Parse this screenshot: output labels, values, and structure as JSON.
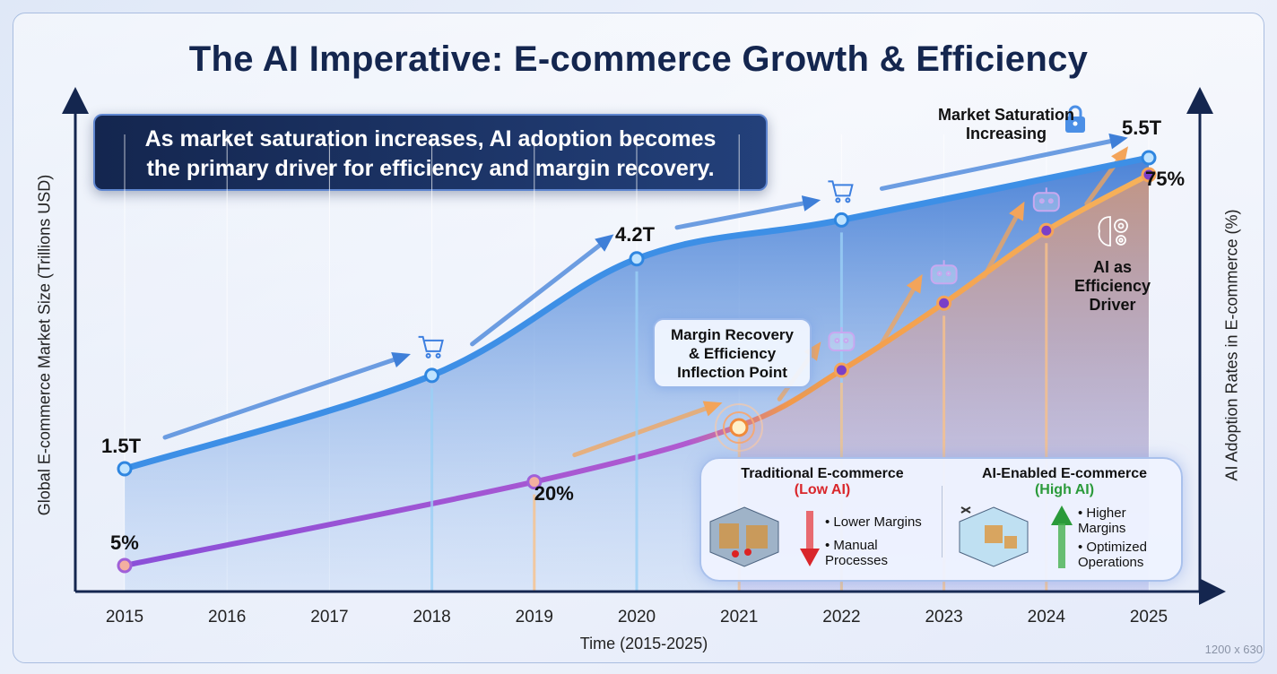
{
  "title": "The AI Imperative: E-commerce Growth & Efficiency",
  "callout": [
    "As market saturation increases, AI adoption becomes",
    "the primary driver for efficiency and margin recovery."
  ],
  "annotations": {
    "saturation": [
      "Market Saturation",
      "Increasing"
    ],
    "inflection": [
      "Margin Recovery",
      "& Efficiency",
      "Inflection Point"
    ],
    "ai_driver": [
      "AI as",
      "Efficiency",
      "Driver"
    ]
  },
  "comparison": {
    "traditional": {
      "title": "Traditional E-commerce",
      "tag": "(Low AI)",
      "bullets": [
        "Lower Margins",
        "Manual Processes"
      ],
      "color": "#d9262b"
    },
    "ai": {
      "title": "AI-Enabled E-commerce",
      "tag": "(High AI)",
      "bullets": [
        "Higher Margins",
        "Optimized Operations"
      ],
      "color": "#2a9a3a"
    }
  },
  "size_label": "1200 x 630",
  "chart_data": {
    "type": "line",
    "xlabel": "Time (2015-2025)",
    "ylabel": "Global E-commerce Market Size (Trillions USD)",
    "y2label": "AI Adoption Rates in E-commerce (%)",
    "x": [
      "2015",
      "2016",
      "2017",
      "2018",
      "2019",
      "2020",
      "2021",
      "2022",
      "2023",
      "2024",
      "2025"
    ],
    "series": [
      {
        "key": "market",
        "axis": "left",
        "color": "#3d8fe6",
        "points": [
          {
            "x": "2015",
            "y": 1.5,
            "label": "1.5T"
          },
          {
            "x": "2018",
            "y": 2.7
          },
          {
            "x": "2020",
            "y": 4.2,
            "label": "4.2T"
          },
          {
            "x": "2022",
            "y": 4.7
          },
          {
            "x": "2025",
            "y": 5.5,
            "label": "5.5T"
          }
        ]
      },
      {
        "key": "adoption",
        "axis": "right",
        "color": "#f5a54a",
        "points": [
          {
            "x": "2015",
            "y": 5,
            "label": "5%"
          },
          {
            "x": "2019",
            "y": 20,
            "label": "20%"
          },
          {
            "x": "2021",
            "y": 30
          },
          {
            "x": "2022",
            "y": 40
          },
          {
            "x": "2023",
            "y": 52
          },
          {
            "x": "2024",
            "y": 65
          },
          {
            "x": "2025",
            "y": 75,
            "label": "75%"
          }
        ]
      }
    ],
    "grid": true,
    "icons": {
      "cart": [
        "2018",
        "2022"
      ],
      "robot": [
        "2022",
        "2023",
        "2024"
      ],
      "lock": "saturation",
      "brain-gear": "ai_driver"
    }
  }
}
